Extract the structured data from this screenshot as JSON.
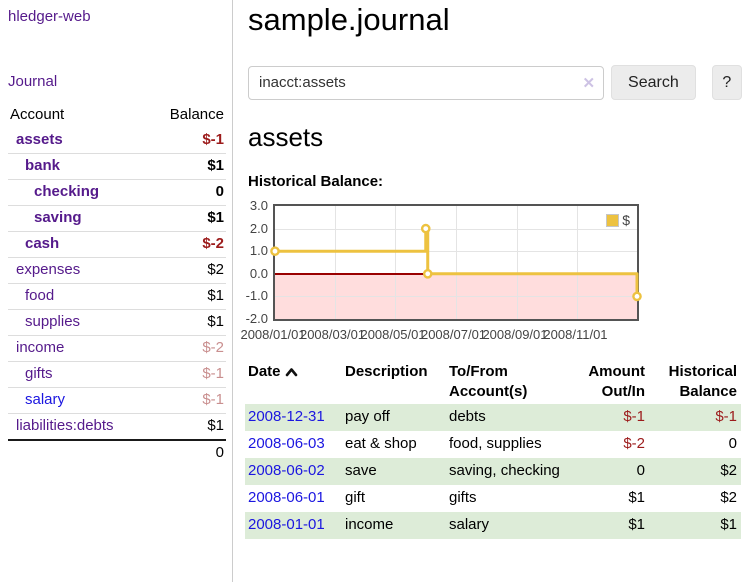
{
  "app": {
    "name": "hledger-web"
  },
  "sidebar": {
    "nav": {
      "journal": "Journal"
    },
    "header": {
      "account": "Account",
      "balance": "Balance"
    },
    "accounts": [
      {
        "name": "assets",
        "balance": "$-1",
        "indent": 1,
        "bold": true,
        "name_color": "purple",
        "balance_color": "red"
      },
      {
        "name": "bank",
        "balance": "$1",
        "indent": 2,
        "bold": true,
        "name_color": "purple",
        "balance_color": "black"
      },
      {
        "name": "checking",
        "balance": "0",
        "indent": 3,
        "bold": true,
        "name_color": "purple",
        "balance_color": "black"
      },
      {
        "name": "saving",
        "balance": "$1",
        "indent": 3,
        "bold": true,
        "name_color": "purple",
        "balance_color": "black"
      },
      {
        "name": "cash",
        "balance": "$-2",
        "indent": 2,
        "bold": true,
        "name_color": "purple",
        "balance_color": "red"
      },
      {
        "name": "expenses",
        "balance": "$2",
        "indent": 1,
        "bold": false,
        "name_color": "purple",
        "balance_color": "black"
      },
      {
        "name": "food",
        "balance": "$1",
        "indent": 2,
        "bold": false,
        "name_color": "purple",
        "balance_color": "black"
      },
      {
        "name": "supplies",
        "balance": "$1",
        "indent": 2,
        "bold": false,
        "name_color": "purple",
        "balance_color": "black"
      },
      {
        "name": "income",
        "balance": "$-2",
        "indent": 1,
        "bold": false,
        "name_color": "purple",
        "balance_color": "rose"
      },
      {
        "name": "gifts",
        "balance": "$-1",
        "indent": 2,
        "bold": false,
        "name_color": "purple",
        "balance_color": "rose"
      },
      {
        "name": "salary",
        "balance": "$-1",
        "indent": 2,
        "bold": false,
        "name_color": "blue",
        "balance_color": "rose"
      },
      {
        "name": "liabilities:debts",
        "balance": "$1",
        "indent": 1,
        "bold": false,
        "name_color": "purple",
        "balance_color": "black"
      }
    ],
    "total": "0"
  },
  "main": {
    "title": "sample.journal",
    "search": {
      "value": "inacct:assets",
      "clear_icon": "✕",
      "button_label": "Search",
      "help_label": "?"
    },
    "account_heading": "assets",
    "chart_label": "Historical Balance:"
  },
  "chart_data": {
    "type": "line",
    "title": "Historical Balance",
    "step": true,
    "x_range": [
      "2008-01-01",
      "2008-12-31"
    ],
    "ylim": [
      -2,
      3
    ],
    "y_ticks": [
      3.0,
      2.0,
      1.0,
      0.0,
      -1.0,
      -2.0
    ],
    "x_ticks": [
      {
        "date": "2008-01-01",
        "label": "2008/01/01"
      },
      {
        "date": "2008-03-01",
        "label": "2008/03/01"
      },
      {
        "date": "2008-05-01",
        "label": "2008/05/01"
      },
      {
        "date": "2008-07-01",
        "label": "2008/07/01"
      },
      {
        "date": "2008-09-01",
        "label": "2008/09/01"
      },
      {
        "date": "2008-11-01",
        "label": "2008/11/01"
      }
    ],
    "series": [
      {
        "name": "$",
        "color": "#edc240",
        "points": [
          {
            "x": "2008-01-01",
            "y": 1
          },
          {
            "x": "2008-06-01",
            "y": 2
          },
          {
            "x": "2008-06-03",
            "y": 0
          },
          {
            "x": "2008-12-31",
            "y": -1
          }
        ]
      }
    ],
    "legend": {
      "label": "$",
      "position": "top-right"
    },
    "negative_region_color": "#ffdddd",
    "zero_line_color": "#990000",
    "grid": true
  },
  "register": {
    "headers": {
      "date": "Date",
      "description": "Description",
      "accounts_line1": "To/From",
      "accounts_line2": "Account(s)",
      "amount_line1": "Amount",
      "amount_line2": "Out/In",
      "balance_line1": "Historical",
      "balance_line2": "Balance"
    },
    "rows": [
      {
        "date": "2008-12-31",
        "description": "pay off",
        "accounts": "debts",
        "amount": "$-1",
        "balance": "$-1",
        "amount_negative": true,
        "balance_negative": true
      },
      {
        "date": "2008-06-03",
        "description": "eat & shop",
        "accounts": "food, supplies",
        "amount": "$-2",
        "balance": "0",
        "amount_negative": true,
        "balance_negative": false
      },
      {
        "date": "2008-06-02",
        "description": "save",
        "accounts": "saving, checking",
        "amount": "0",
        "balance": "$2",
        "amount_negative": false,
        "balance_negative": false
      },
      {
        "date": "2008-06-01",
        "description": "gift",
        "accounts": "gifts",
        "amount": "$1",
        "balance": "$2",
        "amount_negative": false,
        "balance_negative": false
      },
      {
        "date": "2008-01-01",
        "description": "income",
        "accounts": "salary",
        "amount": "$1",
        "balance": "$1",
        "amount_negative": false,
        "balance_negative": false
      }
    ]
  }
}
